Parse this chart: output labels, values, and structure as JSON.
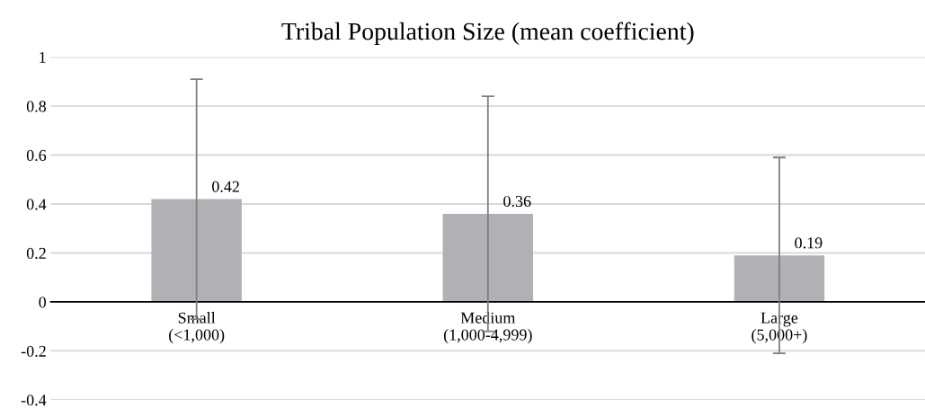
{
  "chart_data": {
    "type": "bar",
    "title": "Tribal Population Size (mean coefficient)",
    "categories": [
      "Small\n(<1,000)",
      "Medium\n(1,000-4,999)",
      "Large\n(5,000+)"
    ],
    "values": [
      0.42,
      0.36,
      0.19
    ],
    "color": "#b0b1b5",
    "errors": [
      0.49,
      0.48,
      0.4
    ],
    "ylim": [
      -0.4,
      1
    ],
    "yticks": [
      -0.4,
      -0.2,
      0,
      0.2,
      0.4,
      0.6,
      0.8,
      1
    ],
    "grid": "y",
    "data_labels": true
  }
}
